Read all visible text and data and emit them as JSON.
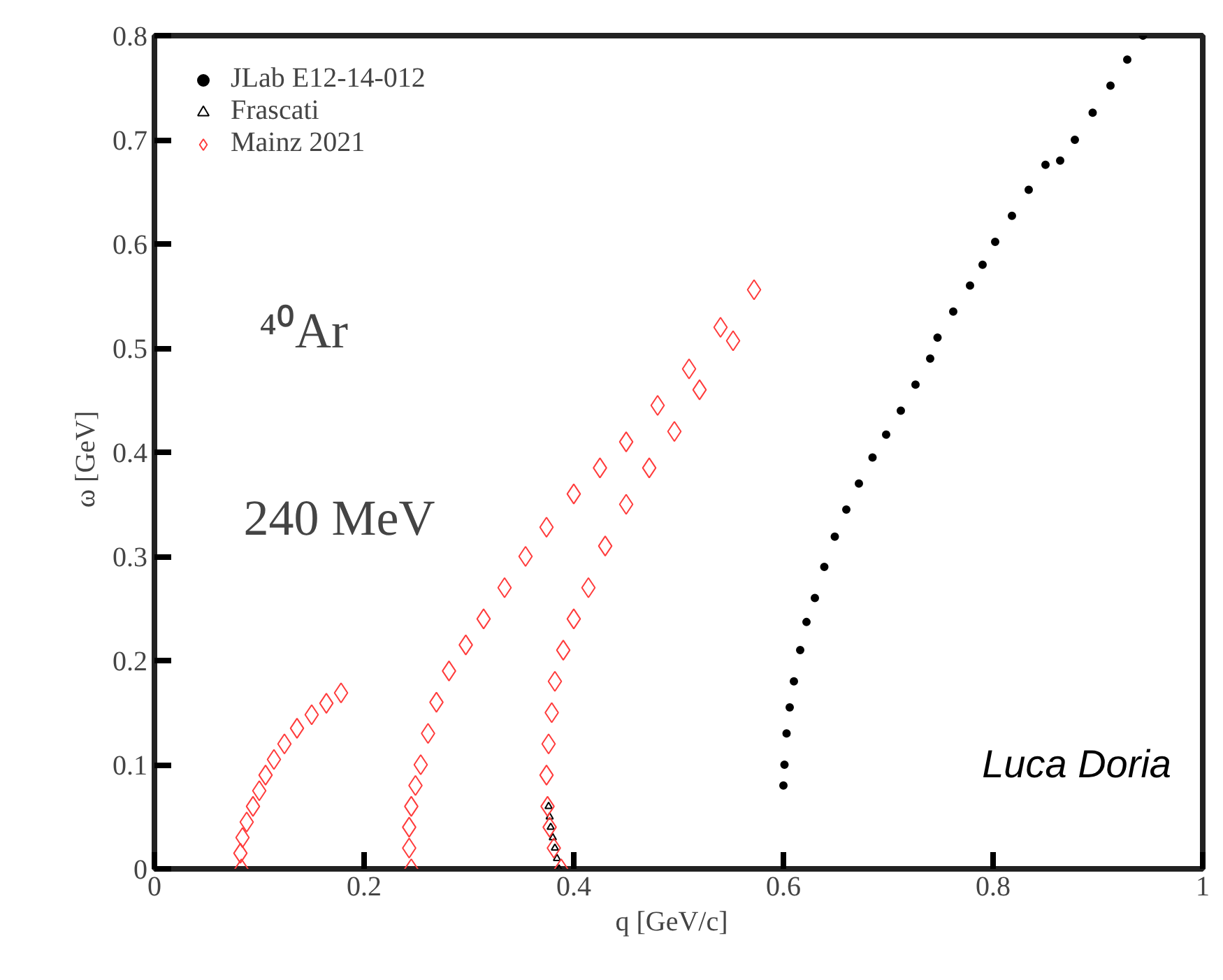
{
  "chart_data": {
    "type": "scatter",
    "xlabel": "q   [GeV/c]",
    "ylabel": "ω   [GeV]",
    "xlim": [
      0,
      1
    ],
    "ylim": [
      0,
      0.8
    ],
    "xticks": [
      0,
      0.2,
      0.4,
      0.6,
      0.8,
      1
    ],
    "yticks": [
      0,
      0.1,
      0.2,
      0.3,
      0.4,
      0.5,
      0.6,
      0.7,
      0.8
    ],
    "grid": false,
    "legend": "top left",
    "annotations": [
      "⁴⁰Ar",
      "240 MeV",
      "Luca Doria"
    ],
    "series": [
      {
        "name": "JLab E12-14-012",
        "color": "#000000",
        "marker": "circle",
        "x": [
          0.6,
          0.601,
          0.603,
          0.606,
          0.61,
          0.616,
          0.622,
          0.63,
          0.639,
          0.649,
          0.66,
          0.672,
          0.685,
          0.698,
          0.712,
          0.726,
          0.74,
          0.747,
          0.762,
          0.778,
          0.79,
          0.802,
          0.818,
          0.834,
          0.85,
          0.864,
          0.878,
          0.895,
          0.912,
          0.928,
          0.943
        ],
        "values": [
          0.08,
          0.1,
          0.13,
          0.155,
          0.18,
          0.21,
          0.237,
          0.26,
          0.29,
          0.319,
          0.345,
          0.37,
          0.395,
          0.417,
          0.44,
          0.465,
          0.49,
          0.51,
          0.535,
          0.56,
          0.58,
          0.602,
          0.627,
          0.652,
          0.676,
          0.68,
          0.7,
          0.726,
          0.752,
          0.777,
          0.8
        ]
      },
      {
        "name": "Frascati",
        "color": "#000000",
        "marker": "triangle",
        "x": [
          0.376,
          0.377,
          0.378,
          0.38,
          0.382,
          0.384,
          0.386
        ],
        "values": [
          0.06,
          0.05,
          0.04,
          0.03,
          0.02,
          0.01,
          0.0
        ]
      },
      {
        "name": "Mainz 2021",
        "color": "#ff3b3b",
        "marker": "diamond",
        "x": [
          0.083,
          0.082,
          0.084,
          0.088,
          0.094,
          0.1,
          0.106,
          0.114,
          0.124,
          0.136,
          0.15,
          0.164,
          0.178,
          0.245,
          0.243,
          0.243,
          0.245,
          0.249,
          0.254,
          0.261,
          0.269,
          0.281,
          0.297,
          0.314,
          0.334,
          0.354,
          0.374,
          0.4,
          0.425,
          0.45,
          0.48,
          0.51,
          0.54,
          0.572,
          0.388,
          0.381,
          0.377,
          0.375,
          0.374,
          0.376,
          0.379,
          0.382,
          0.39,
          0.4,
          0.414,
          0.43,
          0.45,
          0.472,
          0.496,
          0.52,
          0.552
        ],
        "values": [
          0,
          0.015,
          0.03,
          0.045,
          0.06,
          0.075,
          0.09,
          0.105,
          0.12,
          0.135,
          0.148,
          0.159,
          0.169,
          0,
          0.02,
          0.04,
          0.06,
          0.08,
          0.1,
          0.13,
          0.16,
          0.19,
          0.215,
          0.24,
          0.27,
          0.3,
          0.328,
          0.36,
          0.385,
          0.41,
          0.445,
          0.48,
          0.52,
          0.556,
          0,
          0.02,
          0.04,
          0.06,
          0.09,
          0.12,
          0.15,
          0.18,
          0.21,
          0.24,
          0.27,
          0.31,
          0.35,
          0.385,
          0.42,
          0.46,
          0.507
        ]
      }
    ]
  }
}
